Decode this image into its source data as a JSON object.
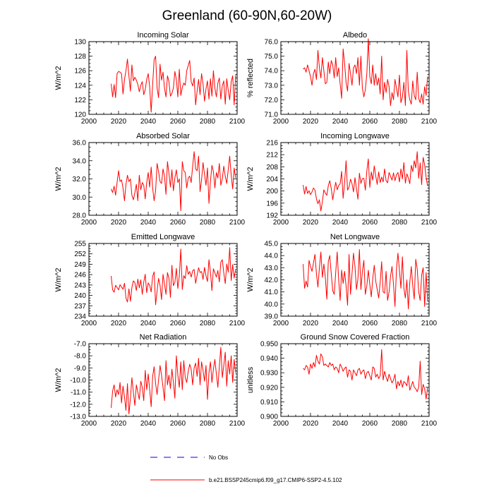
{
  "figure_title": "Greenland (60-90N,60-20W)",
  "colors": {
    "model": "#ff0000",
    "obs": "#0000ff"
  },
  "legend": {
    "obs_label": "No Obs",
    "model_label": "b.e21.BSSP245cmip6.f09_g17.CMIP6-SSP2-4.5.102"
  },
  "chart_data": [
    {
      "type": "line",
      "title": "Incoming Solar",
      "ylabel": "W/m^2",
      "xlim": [
        2000,
        2100
      ],
      "ylim": [
        120,
        130
      ],
      "xticks": [
        2000,
        2020,
        2040,
        2060,
        2080,
        2100
      ],
      "yticks": [
        120,
        122,
        124,
        126,
        128,
        130
      ],
      "ydecimals": 0,
      "series": [
        {
          "x_start": 2015,
          "values": [
            124.2,
            122.4,
            124.1,
            122.3,
            125.6,
            125.9,
            125.8,
            125.6,
            122.8,
            124.8,
            126.0,
            127.6,
            125.3,
            123.2,
            126.8,
            124.6,
            125.1,
            124.7,
            124.1,
            123.1,
            124.0,
            124.5,
            122.7,
            123.4,
            124.8,
            125.6,
            123.8,
            120.3,
            124.1,
            127.5,
            128.0,
            123.6,
            122.3,
            126.9,
            124.7,
            125.8,
            123.6,
            122.4,
            125.3,
            124.5,
            122.5,
            122.9,
            123.6,
            125.9,
            124.8,
            122.4,
            126.2,
            122.6,
            123.7,
            124.3,
            124.0,
            126.0,
            126.7,
            127.4,
            124.5,
            123.9,
            125.0,
            121.3,
            123.2,
            124.8,
            122.7,
            125.6,
            124.2,
            121.8,
            123.5,
            124.6,
            122.1,
            124.9,
            122.5,
            126.0,
            123.6,
            122.4,
            124.3,
            125.0,
            122.1,
            123.9,
            124.6,
            121.4,
            124.9,
            123.3,
            122.0,
            124.5,
            125.3,
            121.3,
            125.4
          ]
        }
      ]
    },
    {
      "type": "line",
      "title": "Albedo",
      "ylabel": "% reflected",
      "xlim": [
        2000,
        2100
      ],
      "ylim": [
        71.0,
        76.0
      ],
      "xticks": [
        2000,
        2020,
        2040,
        2060,
        2080,
        2100
      ],
      "yticks": [
        71.0,
        72.0,
        73.0,
        74.0,
        75.0,
        76.0
      ],
      "ydecimals": 1,
      "series": [
        {
          "x_start": 2015,
          "values": [
            74.1,
            74.2,
            73.9,
            74.4,
            74.0,
            73.6,
            73.0,
            73.8,
            74.1,
            73.4,
            75.4,
            74.2,
            73.5,
            74.9,
            74.0,
            73.1,
            73.2,
            74.6,
            73.8,
            74.7,
            74.4,
            73.5,
            74.9,
            73.6,
            74.2,
            73.1,
            72.1,
            75.5,
            74.5,
            73.2,
            72.6,
            74.5,
            73.8,
            73.0,
            74.2,
            74.4,
            73.8,
            74.9,
            73.0,
            75.0,
            72.8,
            72.2,
            72.7,
            73.8,
            76.2,
            73.6,
            73.1,
            74.4,
            73.0,
            73.8,
            73.0,
            73.5,
            72.4,
            75.0,
            72.0,
            73.2,
            72.5,
            73.4,
            72.9,
            71.6,
            72.5,
            72.0,
            73.4,
            72.8,
            72.2,
            73.7,
            71.8,
            72.2,
            73.2,
            71.6,
            75.4,
            72.6,
            72.0,
            71.7,
            73.3,
            72.3,
            72.0,
            73.9,
            72.1,
            71.8,
            72.4,
            71.7,
            72.9,
            72.3,
            73.6
          ]
        }
      ]
    },
    {
      "type": "line",
      "title": "Absorbed Solar",
      "ylabel": "W/m^2",
      "xlim": [
        2000,
        2100
      ],
      "ylim": [
        28.0,
        36.0
      ],
      "xticks": [
        2000,
        2020,
        2040,
        2060,
        2080,
        2100
      ],
      "yticks": [
        28.0,
        30.0,
        32.0,
        34.0,
        36.0
      ],
      "ydecimals": 1,
      "series": [
        {
          "x_start": 2015,
          "values": [
            30.9,
            30.5,
            31.2,
            30.2,
            31.6,
            32.9,
            31.7,
            31.9,
            31.0,
            29.6,
            31.4,
            32.4,
            31.7,
            32.0,
            30.2,
            29.7,
            30.5,
            31.4,
            29.6,
            32.4,
            30.8,
            31.6,
            31.3,
            29.8,
            31.6,
            32.7,
            31.1,
            33.3,
            31.0,
            29.6,
            30.7,
            33.7,
            32.8,
            31.7,
            31.5,
            33.1,
            32.3,
            30.3,
            33.9,
            32.6,
            31.1,
            33.0,
            30.7,
            32.1,
            33.0,
            31.6,
            32.0,
            28.5,
            33.9,
            32.9,
            32.7,
            31.0,
            32.1,
            32.3,
            31.6,
            33.4,
            35.0,
            33.1,
            32.9,
            34.5,
            30.6,
            31.9,
            33.8,
            32.5,
            31.3,
            33.2,
            29.3,
            31.7,
            33.5,
            32.8,
            31.0,
            32.7,
            32.1,
            33.7,
            31.3,
            32.0,
            33.4,
            32.3,
            31.5,
            33.0,
            34.5,
            32.4,
            30.9,
            33.2,
            32.1
          ]
        }
      ]
    },
    {
      "type": "line",
      "title": "Incoming Longwave",
      "ylabel": "W/m^2",
      "xlim": [
        2000,
        2100
      ],
      "ylim": [
        192,
        216
      ],
      "xticks": [
        2000,
        2020,
        2040,
        2060,
        2080,
        2100
      ],
      "yticks": [
        192,
        196,
        200,
        204,
        208,
        212,
        216
      ],
      "ydecimals": 0,
      "series": [
        {
          "x_start": 2015,
          "values": [
            202.0,
            199.0,
            201.5,
            199.2,
            200.1,
            198.8,
            199.7,
            201.0,
            200.3,
            197.4,
            195.8,
            197.1,
            193.4,
            196.5,
            200.4,
            199.3,
            198.6,
            201.7,
            203.4,
            200.8,
            197.1,
            200.2,
            202.9,
            200.4,
            201.8,
            202.4,
            206.5,
            197.6,
            202.8,
            210.0,
            200.3,
            201.3,
            203.9,
            202.4,
            199.7,
            204.4,
            200.8,
            197.3,
            205.9,
            202.5,
            204.1,
            204.2,
            200.3,
            206.7,
            210.6,
            201.2,
            206.3,
            203.6,
            208.3,
            205.0,
            202.2,
            206.3,
            202.8,
            204.6,
            203.0,
            207.3,
            203.4,
            202.7,
            206.1,
            204.9,
            203.6,
            206.0,
            203.4,
            205.4,
            206.1,
            203.0,
            207.3,
            204.0,
            209.4,
            202.6,
            205.7,
            204.3,
            202.4,
            208.5,
            206.4,
            210.0,
            207.6,
            213.0,
            204.2,
            209.3,
            202.1,
            211.1,
            208.7,
            204.6,
            201.6
          ]
        }
      ]
    },
    {
      "type": "line",
      "title": "Emitted Longwave",
      "ylabel": "W/m^2",
      "xlim": [
        2000,
        2100
      ],
      "ylim": [
        234,
        255
      ],
      "xticks": [
        2000,
        2020,
        2040,
        2060,
        2080,
        2100
      ],
      "yticks": [
        234,
        237,
        240,
        243,
        246,
        249,
        252,
        255
      ],
      "ydecimals": 0,
      "series": [
        {
          "x_start": 2015,
          "values": [
            245.6,
            241.6,
            240.9,
            242.9,
            242.3,
            241.6,
            243.1,
            242.4,
            241.8,
            243.5,
            239.2,
            238.1,
            241.9,
            238.3,
            242.3,
            244.2,
            243.7,
            241.4,
            244.7,
            242.2,
            244.5,
            240.3,
            243.8,
            246.1,
            240.8,
            243.6,
            242.9,
            241.0,
            245.5,
            246.8,
            237.3,
            241.3,
            244.9,
            242.9,
            238.8,
            246.1,
            243.3,
            240.3,
            246.6,
            244.9,
            239.4,
            248.7,
            242.8,
            243.8,
            247.8,
            242.0,
            245.6,
            253.4,
            241.7,
            245.7,
            244.9,
            248.6,
            246.1,
            246.9,
            245.3,
            247.1,
            247.5,
            243.5,
            245.8,
            248.0,
            246.6,
            246.9,
            244.6,
            248.1,
            245.7,
            244.0,
            250.3,
            246.8,
            241.4,
            247.7,
            246.5,
            245.3,
            247.2,
            243.9,
            249.6,
            250.3,
            246.5,
            243.4,
            249.1,
            246.7,
            253.8,
            244.3,
            248.9,
            245.0,
            247.6
          ]
        }
      ]
    },
    {
      "type": "line",
      "title": "Net Longwave",
      "ylabel": "W/m^2",
      "xlim": [
        2000,
        2100
      ],
      "ylim": [
        39.0,
        45.0
      ],
      "xticks": [
        2000,
        2020,
        2040,
        2060,
        2080,
        2100
      ],
      "yticks": [
        39.0,
        40.0,
        41.0,
        42.0,
        43.0,
        44.0,
        45.0
      ],
      "ydecimals": 1,
      "series": [
        {
          "x_start": 2015,
          "values": [
            43.3,
            41.3,
            41.9,
            41.4,
            43.6,
            43.1,
            42.7,
            43.4,
            44.1,
            42.5,
            41.4,
            43.0,
            44.3,
            42.2,
            43.3,
            42.2,
            40.4,
            43.5,
            44.0,
            42.5,
            41.1,
            40.8,
            42.6,
            44.3,
            42.0,
            40.3,
            42.8,
            41.7,
            42.7,
            41.5,
            39.9,
            44.1,
            40.8,
            42.5,
            44.2,
            43.1,
            41.2,
            42.1,
            44.5,
            41.2,
            42.7,
            43.6,
            40.8,
            41.5,
            42.8,
            41.6,
            40.6,
            42.1,
            43.2,
            41.9,
            41.2,
            40.5,
            41.8,
            43.5,
            41.0,
            40.9,
            42.7,
            40.3,
            41.0,
            42.3,
            43.1,
            41.6,
            39.8,
            42.9,
            44.2,
            42.8,
            41.3,
            43.9,
            41.3,
            40.5,
            42.0,
            39.6,
            41.8,
            43.1,
            41.5,
            40.4,
            43.7,
            42.9,
            41.0,
            40.3,
            42.4,
            43.0,
            39.8,
            42.6,
            40.2
          ]
        }
      ]
    },
    {
      "type": "line",
      "title": "Net Radiation",
      "ylabel": "W/m^2",
      "xlim": [
        2000,
        2100
      ],
      "ylim": [
        -13.0,
        -7.0
      ],
      "xticks": [
        2000,
        2020,
        2040,
        2060,
        2080,
        2100
      ],
      "yticks": [
        -13.0,
        -12.0,
        -11.0,
        -10.0,
        -9.0,
        -8.0,
        -7.0
      ],
      "ydecimals": 1,
      "series": [
        {
          "x_start": 2015,
          "values": [
            -12.3,
            -10.9,
            -10.4,
            -11.4,
            -10.8,
            -11.2,
            -10.2,
            -11.9,
            -10.5,
            -11.4,
            -12.5,
            -10.3,
            -12.8,
            -11.5,
            -9.8,
            -11.0,
            -12.1,
            -10.4,
            -11.0,
            -11.6,
            -10.1,
            -10.6,
            -11.7,
            -9.2,
            -10.8,
            -9.5,
            -10.8,
            -12.2,
            -9.7,
            -8.9,
            -10.3,
            -11.2,
            -10.0,
            -8.8,
            -9.6,
            -10.6,
            -11.7,
            -8.4,
            -10.4,
            -9.6,
            -10.7,
            -9.1,
            -10.2,
            -11.5,
            -8.0,
            -9.6,
            -10.6,
            -8.5,
            -10.8,
            -8.4,
            -9.8,
            -10.2,
            -9.3,
            -8.7,
            -9.1,
            -10.4,
            -9.0,
            -8.6,
            -9.7,
            -8.2,
            -10.4,
            -8.5,
            -9.2,
            -10.1,
            -8.8,
            -11.6,
            -9.4,
            -8.5,
            -10.2,
            -9.1,
            -8.3,
            -9.5,
            -10.6,
            -8.9,
            -7.3,
            -9.8,
            -8.8,
            -7.7,
            -10.5,
            -8.4,
            -9.5,
            -8.0,
            -10.2,
            -8.3,
            -9.4
          ]
        }
      ]
    },
    {
      "type": "line",
      "title": "Ground Snow Covered Fraction",
      "ylabel": "unitless",
      "xlim": [
        2000,
        2100
      ],
      "ylim": [
        0.9,
        0.95
      ],
      "xticks": [
        2000,
        2020,
        2040,
        2060,
        2080,
        2100
      ],
      "yticks": [
        0.9,
        0.91,
        0.92,
        0.93,
        0.94,
        0.95
      ],
      "ydecimals": 3,
      "series": [
        {
          "x_start": 2015,
          "values": [
            0.933,
            0.932,
            0.935,
            0.934,
            0.929,
            0.936,
            0.933,
            0.937,
            0.934,
            0.942,
            0.938,
            0.936,
            0.943,
            0.941,
            0.935,
            0.936,
            0.935,
            0.934,
            0.937,
            0.935,
            0.936,
            0.932,
            0.934,
            0.933,
            0.93,
            0.936,
            0.934,
            0.931,
            0.933,
            0.934,
            0.927,
            0.932,
            0.931,
            0.925,
            0.932,
            0.93,
            0.928,
            0.932,
            0.933,
            0.929,
            0.931,
            0.932,
            0.926,
            0.93,
            0.931,
            0.928,
            0.925,
            0.934,
            0.933,
            0.927,
            0.929,
            0.926,
            0.928,
            0.946,
            0.925,
            0.931,
            0.927,
            0.924,
            0.929,
            0.926,
            0.923,
            0.925,
            0.929,
            0.919,
            0.924,
            0.921,
            0.925,
            0.92,
            0.924,
            0.923,
            0.921,
            0.928,
            0.918,
            0.921,
            0.924,
            0.92,
            0.919,
            0.917,
            0.92,
            0.938,
            0.915,
            0.922,
            0.919,
            0.912,
            0.92
          ]
        }
      ]
    }
  ]
}
